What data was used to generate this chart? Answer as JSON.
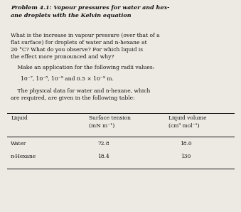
{
  "title": "Problem 4.1: Vapour pressures for water and hex-\nane droplets with the Kelvin equation",
  "body": "What is the increase in vapour pressure (over that of a\nflat surface) for droplets of water and n-hexane at\n20 °C? What do you observe? For which liquid is\nthe effect more pronounced and why?",
  "indent_line": "    Make an application for the following radii values:",
  "radii": "10⁻⁷, 10⁻⁵, 10⁻⁹ and 0.5 × 10⁻⁹ m.",
  "intro": "    The physical data for water and n-hexane, which\nare required, are given in the following table:",
  "col1_header": "Liquid",
  "col2_header": "Surface tension\n(mN m⁻¹)",
  "col3_header": "Liquid volume\n(cm³ mol⁻¹)",
  "row1": [
    "Water",
    "72.8",
    "18.0"
  ],
  "row2": [
    "n-Hexane",
    "18.4",
    "130"
  ],
  "bg_color": "#edeae3",
  "text_color": "#111111",
  "title_fs": 5.8,
  "body_fs": 5.5,
  "table_fs": 5.4
}
